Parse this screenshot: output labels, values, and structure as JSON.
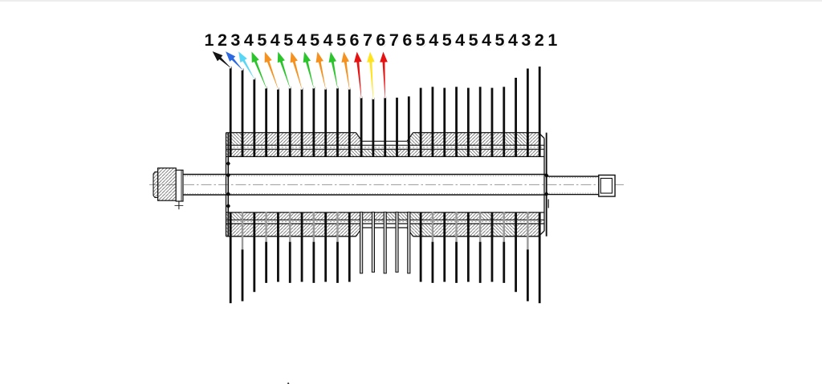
{
  "page": {
    "background_color": "#ffffff",
    "top_border_color": "#ededed"
  },
  "diagram": {
    "type": "technical-drawing",
    "description": "Cross-section of a pinned opening roller: central shaft, hatched drum shell, 27 radial pin rows labeled by length group, colored arrows keying labels 1-7 to pin lengths",
    "number_labels": [
      "1",
      "2",
      "3",
      "4",
      "5",
      "4",
      "5",
      "4",
      "5",
      "4",
      "5",
      "6",
      "7",
      "6",
      "7",
      "6",
      "5",
      "4",
      "5",
      "4",
      "5",
      "4",
      "5",
      "4",
      "3",
      "2",
      "1"
    ],
    "pin_count": 27,
    "arrows": [
      {
        "label": "1",
        "color": "#141414",
        "color_name": "black"
      },
      {
        "label": "2",
        "color": "#2d6ae2",
        "color_name": "blue"
      },
      {
        "label": "3",
        "color": "#58d6f5",
        "color_name": "cyan"
      },
      {
        "label": "4",
        "color": "#2cc42c",
        "color_name": "green"
      },
      {
        "label": "5",
        "color": "#f4911f",
        "color_name": "orange"
      },
      {
        "label": "4",
        "color": "#2cc42c",
        "color_name": "green"
      },
      {
        "label": "5",
        "color": "#f4911f",
        "color_name": "orange"
      },
      {
        "label": "4",
        "color": "#2cc42c",
        "color_name": "green"
      },
      {
        "label": "5",
        "color": "#f4911f",
        "color_name": "orange"
      },
      {
        "label": "4",
        "color": "#2cc42c",
        "color_name": "green"
      },
      {
        "label": "5",
        "color": "#f4911f",
        "color_name": "orange"
      },
      {
        "label": "6",
        "color": "#e61212",
        "color_name": "red"
      },
      {
        "label": "7",
        "color": "#ffe31c",
        "color_name": "yellow"
      },
      {
        "label": "6",
        "color": "#e61212",
        "color_name": "red"
      }
    ],
    "pin_tip_y_by_label": {
      "1": 81,
      "2": 83.5,
      "3": 95,
      "4": 106.3,
      "5": 107.6,
      "6": 118.3,
      "7": 119.8
    },
    "colors": {
      "line": "#111111",
      "pin": "#0e0e0e",
      "pin_back_gray": "#9a9a9a",
      "pin_hollow_fill": "#c9c9c9",
      "hatch": "#606060",
      "centerline": "#9a9a9a",
      "label_fill": "#0d0d0d",
      "label_halo": "#ffffff",
      "label_shadow": "#b8b8b8"
    }
  }
}
